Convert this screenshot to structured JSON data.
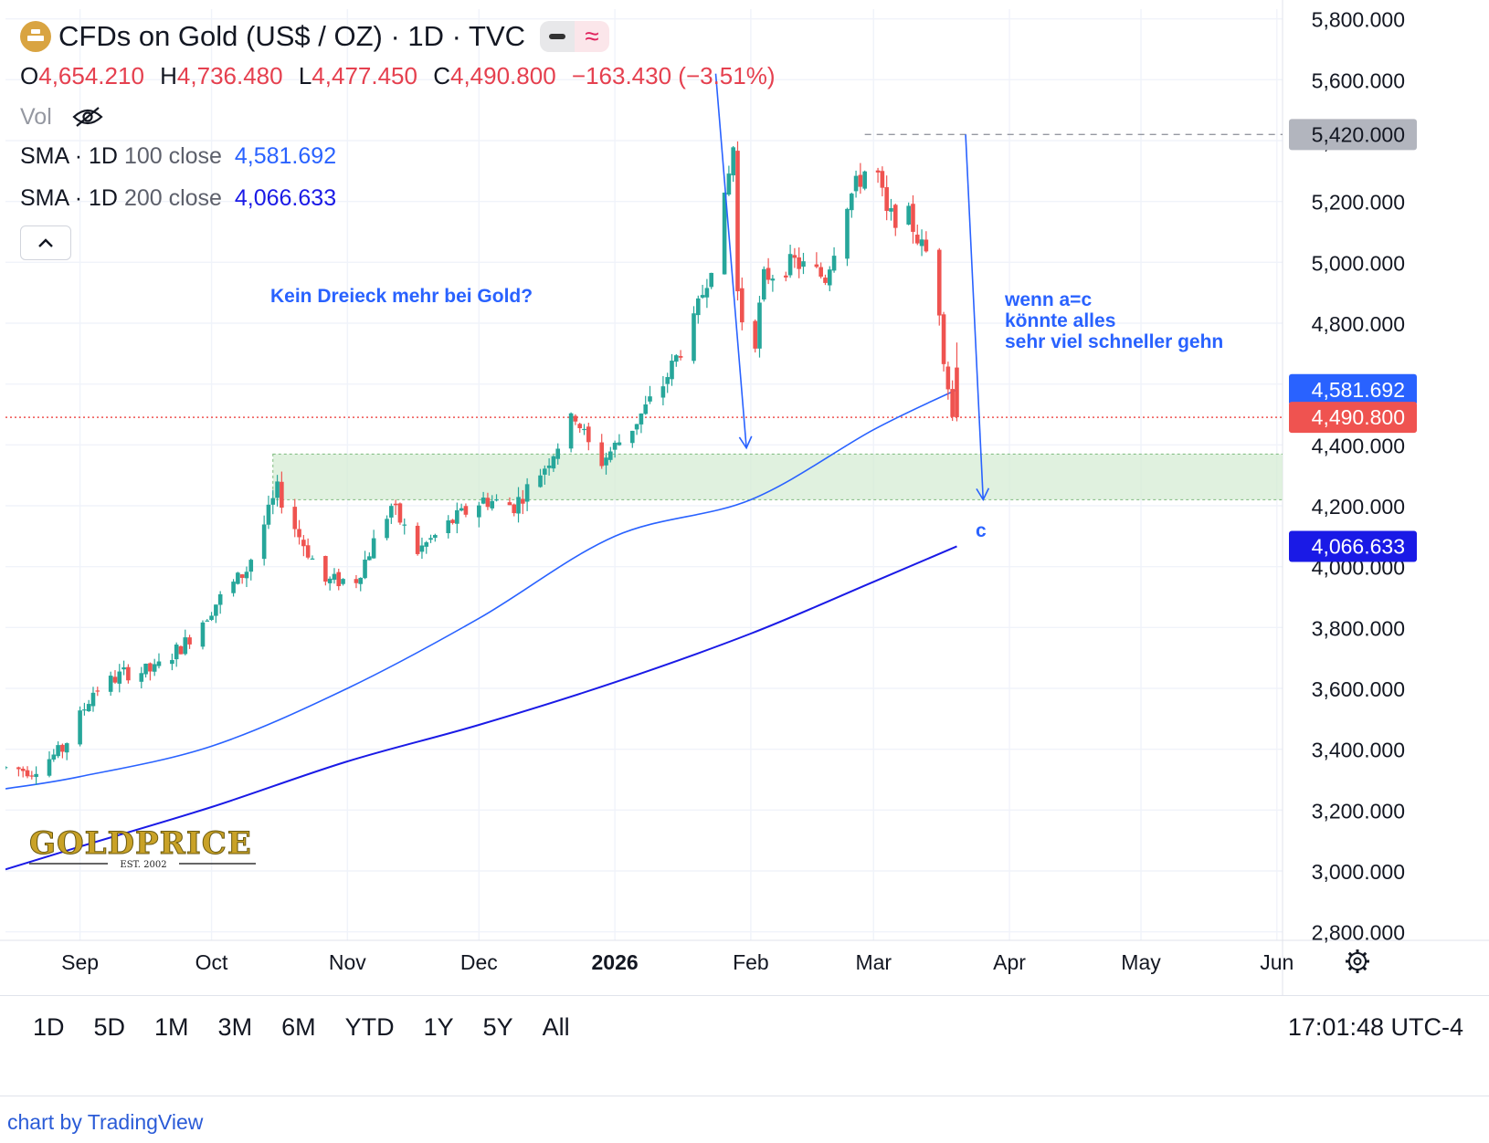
{
  "header": {
    "title": "CFDs on Gold (US$ / OZ) · 1D · TVC",
    "icon": "gold-bar-icon",
    "ohlc": {
      "o_label": "O",
      "o_value": "4,654.210",
      "h_label": "H",
      "h_value": "4,736.480",
      "l_label": "L",
      "l_value": "4,477.450",
      "c_label": "C",
      "c_value": "4,490.800",
      "change": "−163.430 (−3.51%)"
    },
    "vol_label": "Vol",
    "sma100": {
      "label": "SMA · 1D",
      "params": "100 close",
      "value": "4,581.692"
    },
    "sma200": {
      "label": "SMA · 1D",
      "params": "200 close",
      "value": "4,066.633"
    }
  },
  "annotations": {
    "text1": "Kein Dreieck mehr bei Gold?",
    "text2_line1": "wenn a=c",
    "text2_line2": "könnte alles",
    "text2_line3": "sehr viel schneller gehn",
    "wave_label": "c"
  },
  "price_tags": {
    "level": "5,420.000",
    "sma100": "4,581.692",
    "last": "4,490.800",
    "sma200": "4,066.633"
  },
  "watermark": {
    "brand": "GOLDPRICE",
    "est": "EST. 2002"
  },
  "range_buttons": [
    "1D",
    "5D",
    "1M",
    "3M",
    "6M",
    "YTD",
    "1Y",
    "5Y",
    "All"
  ],
  "clock": "17:01:48 UTC-4",
  "footer": "chart by TradingView",
  "colors": {
    "up": "#26a69a",
    "down": "#ef5350",
    "sma100": "#2962ff",
    "sma200": "#1a1ae6",
    "annotation": "#2962ff",
    "zone": "#c8e6c9"
  },
  "chart_data": {
    "type": "candlestick",
    "title": "CFDs on Gold (US$ / OZ) · 1D · TVC",
    "y_axis": {
      "ylim": [
        2700,
        5850
      ],
      "ticks": [
        2800,
        3000,
        3200,
        3400,
        3600,
        3800,
        4000,
        4200,
        4400,
        4600,
        4800,
        5000,
        5200,
        5400,
        5600,
        5800
      ],
      "tick_labels": [
        "2,800.000",
        "3,000.000",
        "3,200.000",
        "3,400.000",
        "3,600.000",
        "3,800.000",
        "4,000.000",
        "4,200.000",
        "4,400.000",
        "4,600.000",
        "4,800.000",
        "5,000.000",
        "5,200.000",
        "5,400.000",
        "5,600.000",
        "5,800.000"
      ]
    },
    "x_axis": {
      "range": [
        "2025-08-15",
        "2026-06-15"
      ],
      "ticks": [
        {
          "date": "2025-09-01",
          "label": "Sep",
          "bold": false
        },
        {
          "date": "2025-10-01",
          "label": "Oct",
          "bold": false
        },
        {
          "date": "2025-11-01",
          "label": "Nov",
          "bold": false
        },
        {
          "date": "2025-12-01",
          "label": "Dec",
          "bold": false
        },
        {
          "date": "2026-01-01",
          "label": "2026",
          "bold": true
        },
        {
          "date": "2026-02-01",
          "label": "Feb",
          "bold": false
        },
        {
          "date": "2026-03-01",
          "label": "Mar",
          "bold": false
        },
        {
          "date": "2026-04-01",
          "label": "Apr",
          "bold": false
        },
        {
          "date": "2026-05-01",
          "label": "May",
          "bold": false
        },
        {
          "date": "2026-06-01",
          "label": "Jun",
          "bold": false
        }
      ]
    },
    "price_path": [
      [
        "2025-08-15",
        3340
      ],
      [
        "2025-08-22",
        3330
      ],
      [
        "2025-08-29",
        3400
      ],
      [
        "2025-09-05",
        3590
      ],
      [
        "2025-09-12",
        3650
      ],
      [
        "2025-09-19",
        3660
      ],
      [
        "2025-09-26",
        3750
      ],
      [
        "2025-10-03",
        3880
      ],
      [
        "2025-10-10",
        3990
      ],
      [
        "2025-10-17",
        4250
      ],
      [
        "2025-10-22",
        4100
      ],
      [
        "2025-10-28",
        3950
      ],
      [
        "2025-11-04",
        3960
      ],
      [
        "2025-11-12",
        4200
      ],
      [
        "2025-11-18",
        4050
      ],
      [
        "2025-11-26",
        4150
      ],
      [
        "2025-12-03",
        4220
      ],
      [
        "2025-12-10",
        4200
      ],
      [
        "2025-12-17",
        4330
      ],
      [
        "2025-12-24",
        4500
      ],
      [
        "2025-12-29",
        4330
      ],
      [
        "2026-01-06",
        4460
      ],
      [
        "2026-01-13",
        4600
      ],
      [
        "2026-01-20",
        4800
      ],
      [
        "2026-01-26",
        5100
      ],
      [
        "2026-01-29",
        5380
      ],
      [
        "2026-01-30",
        4900
      ],
      [
        "2026-02-02",
        4650
      ],
      [
        "2026-02-05",
        4950
      ],
      [
        "2026-02-12",
        5000
      ],
      [
        "2026-02-19",
        4950
      ],
      [
        "2026-02-24",
        5200
      ],
      [
        "2026-03-02",
        5350
      ],
      [
        "2026-03-05",
        5150
      ],
      [
        "2026-03-10",
        5150
      ],
      [
        "2026-03-13",
        5050
      ],
      [
        "2026-03-16",
        5000
      ],
      [
        "2026-03-18",
        4700
      ],
      [
        "2026-03-20",
        4490.8
      ]
    ],
    "last_candle": {
      "date": "2026-03-20",
      "open": 4654.21,
      "high": 4736.48,
      "low": 4477.45,
      "close": 4490.8
    },
    "series": [
      {
        "name": "SMA · 1D 100 close",
        "points": [
          [
            "2025-08-15",
            3270
          ],
          [
            "2025-09-01",
            3310
          ],
          [
            "2025-10-01",
            3410
          ],
          [
            "2025-11-01",
            3600
          ],
          [
            "2025-12-01",
            3830
          ],
          [
            "2026-01-01",
            4100
          ],
          [
            "2026-02-01",
            4220
          ],
          [
            "2026-03-01",
            4450
          ],
          [
            "2026-03-20",
            4581.692
          ]
        ]
      },
      {
        "name": "SMA · 1D 200 close",
        "points": [
          [
            "2025-08-15",
            3005
          ],
          [
            "2025-09-01",
            3080
          ],
          [
            "2025-10-01",
            3210
          ],
          [
            "2025-11-01",
            3360
          ],
          [
            "2025-12-01",
            3480
          ],
          [
            "2026-01-01",
            3620
          ],
          [
            "2026-02-01",
            3780
          ],
          [
            "2026-03-01",
            3950
          ],
          [
            "2026-03-20",
            4066.633
          ]
        ]
      }
    ],
    "zone": {
      "from_date": "2025-10-15",
      "to_date": "2026-06-15",
      "low": 4220,
      "high": 4370
    },
    "level_line": {
      "value": 5420,
      "from_date": "2026-02-27"
    },
    "last_price_line": 4490.8,
    "arrows": [
      {
        "from": [
          "2026-01-24",
          5620
        ],
        "to": [
          "2026-01-31",
          4390
        ]
      },
      {
        "from": [
          "2026-03-22",
          5420
        ],
        "to": [
          "2026-03-26",
          4220
        ]
      }
    ]
  }
}
